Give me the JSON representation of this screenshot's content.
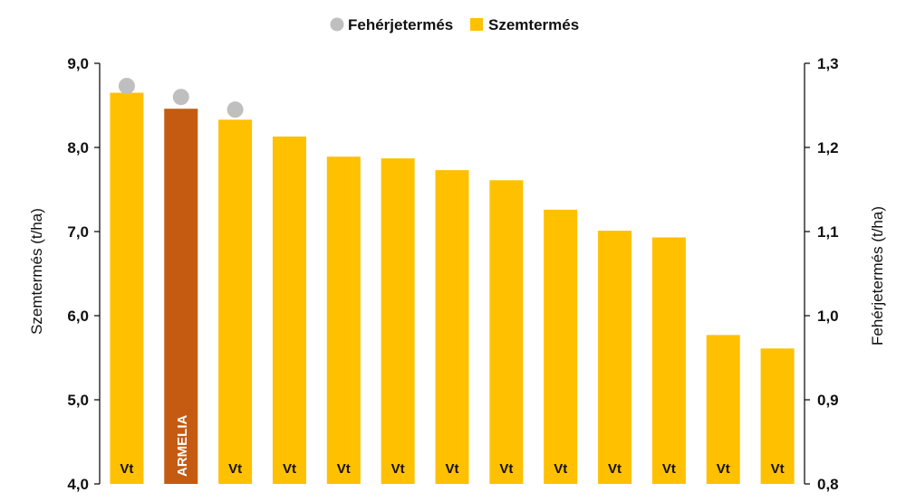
{
  "chart_data": {
    "type": "bar",
    "categories": [
      "Vt",
      "ARMELIA",
      "Vt",
      "Vt",
      "Vt",
      "Vt",
      "Vt",
      "Vt",
      "Vt",
      "Vt",
      "Vt",
      "Vt",
      "Vt"
    ],
    "series": [
      {
        "name": "Szemtermés",
        "type": "bar",
        "axis": "left",
        "values": [
          8.65,
          8.46,
          8.33,
          8.13,
          7.89,
          7.87,
          7.73,
          7.61,
          7.26,
          7.01,
          6.93,
          5.77,
          5.61
        ]
      },
      {
        "name": "Fehérjetermés",
        "type": "scatter",
        "axis": "right",
        "values": [
          1.273,
          1.26,
          1.245,
          null,
          null,
          null,
          null,
          null,
          null,
          null,
          null,
          null,
          null
        ]
      }
    ],
    "ylabel": "Szemtermés (t/ha)",
    "y2label": "Fehérjetermés (t/ha)",
    "ylim": [
      4.0,
      9.0
    ],
    "y2lim": [
      0.8,
      1.3
    ],
    "yticks": [
      "4,0",
      "5,0",
      "6,0",
      "7,0",
      "8,0",
      "9,0"
    ],
    "y2ticks": [
      "0,8",
      "0,9",
      "1,0",
      "1,1",
      "1,2",
      "1,3"
    ],
    "legend_position": "top-center",
    "grid": false,
    "highlight_index": 1,
    "colors": {
      "bar": "#FFC000",
      "highlight_bar": "#C55A11",
      "marker": "#BFBFBF",
      "label_dark": "#111111",
      "label_light": "#FFFFFF"
    }
  }
}
